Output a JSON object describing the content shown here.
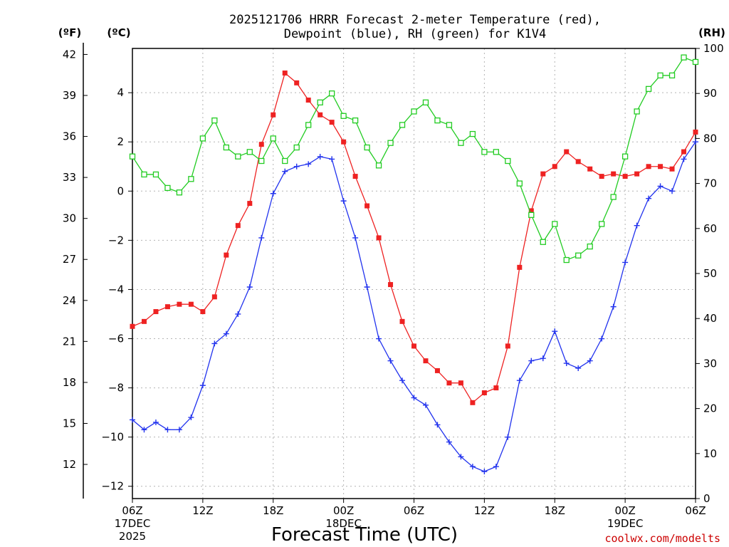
{
  "chart_data": {
    "type": "line",
    "title_line1": "2025121706 HRRR Forecast 2-meter Temperature (red),",
    "title_line2": "Dewpoint (blue), RH (green) for K1V4",
    "xlabel": "Forecast Time (UTC)",
    "credit": "coolwx.com/modelts",
    "units": {
      "fahrenheit": "(ºF)",
      "celsius": "(ºC)",
      "rh": "(RH)"
    },
    "xlim": [
      0,
      48
    ],
    "x_ticks": [
      {
        "h": 0,
        "label": "06Z",
        "sub1": "17DEC",
        "sub2": "2025"
      },
      {
        "h": 6,
        "label": "12Z",
        "sub1": "",
        "sub2": ""
      },
      {
        "h": 12,
        "label": "18Z",
        "sub1": "",
        "sub2": ""
      },
      {
        "h": 18,
        "label": "00Z",
        "sub1": "18DEC",
        "sub2": ""
      },
      {
        "h": 24,
        "label": "06Z",
        "sub1": "",
        "sub2": ""
      },
      {
        "h": 30,
        "label": "12Z",
        "sub1": "",
        "sub2": ""
      },
      {
        "h": 36,
        "label": "18Z",
        "sub1": "",
        "sub2": ""
      },
      {
        "h": 42,
        "label": "00Z",
        "sub1": "19DEC",
        "sub2": ""
      },
      {
        "h": 48,
        "label": "06Z",
        "sub1": "",
        "sub2": ""
      }
    ],
    "ylim_c": [
      -12.5,
      5.8
    ],
    "y_ticks_c": [
      "4",
      "2",
      "0",
      "−2",
      "−4",
      "−6",
      "−8",
      "−10",
      "−12"
    ],
    "y_ticks_f": [
      "42",
      "39",
      "36",
      "33",
      "30",
      "27",
      "24",
      "21",
      "18",
      "15",
      "12"
    ],
    "ylim_rh": [
      0,
      100
    ],
    "y_ticks_rh": [
      "100",
      "90",
      "80",
      "70",
      "60",
      "50",
      "40",
      "30",
      "20",
      "10",
      "0"
    ],
    "colors": {
      "temperature": "#ee2222",
      "dewpoint": "#2233ee",
      "rh": "#22cc22"
    },
    "series": [
      {
        "name": "Temperature (°C)",
        "values": [
          -5.5,
          -5.3,
          -4.9,
          -4.7,
          -4.6,
          -4.6,
          -4.9,
          -4.3,
          -2.6,
          -1.4,
          -0.5,
          1.9,
          3.1,
          4.8,
          4.4,
          3.7,
          3.1,
          2.8,
          2.0,
          0.6,
          -0.6,
          -1.9,
          -3.8,
          -5.3,
          -6.3,
          -6.9,
          -7.3,
          -7.8,
          -7.8,
          -8.6,
          -8.2,
          -8.0,
          -6.3,
          -3.1,
          -0.8,
          0.7,
          1.0,
          1.6,
          1.2,
          0.9,
          0.6,
          0.7,
          0.6,
          0.7,
          1.0,
          1.0,
          0.9,
          1.6,
          2.4
        ]
      },
      {
        "name": "Dewpoint (°C)",
        "values": [
          -9.3,
          -9.7,
          -9.4,
          -9.7,
          -9.7,
          -9.2,
          -7.9,
          -6.2,
          -5.8,
          -5.0,
          -3.9,
          -1.9,
          -0.1,
          0.8,
          1.0,
          1.1,
          1.4,
          1.3,
          -0.4,
          -1.9,
          -3.9,
          -6.0,
          -6.9,
          -7.7,
          -8.4,
          -8.7,
          -9.5,
          -10.2,
          -10.8,
          -11.2,
          -11.4,
          -11.2,
          -10.0,
          -7.7,
          -6.9,
          -6.8,
          -5.7,
          -7.0,
          -7.2,
          -6.9,
          -6.0,
          -4.7,
          -2.9,
          -1.4,
          -0.3,
          0.2,
          0.0,
          1.3,
          2.0
        ]
      },
      {
        "name": "RH (%)",
        "values": [
          76,
          72,
          72,
          69,
          68,
          71,
          80,
          84,
          78,
          76,
          77,
          75,
          80,
          75,
          78,
          83,
          88,
          90,
          85,
          84,
          78,
          74,
          79,
          83,
          86,
          88,
          84,
          83,
          79,
          81,
          77,
          77,
          75,
          70,
          63,
          57,
          61,
          53,
          54,
          56,
          61,
          67,
          76,
          86,
          91,
          94,
          94,
          98,
          97
        ]
      }
    ]
  }
}
